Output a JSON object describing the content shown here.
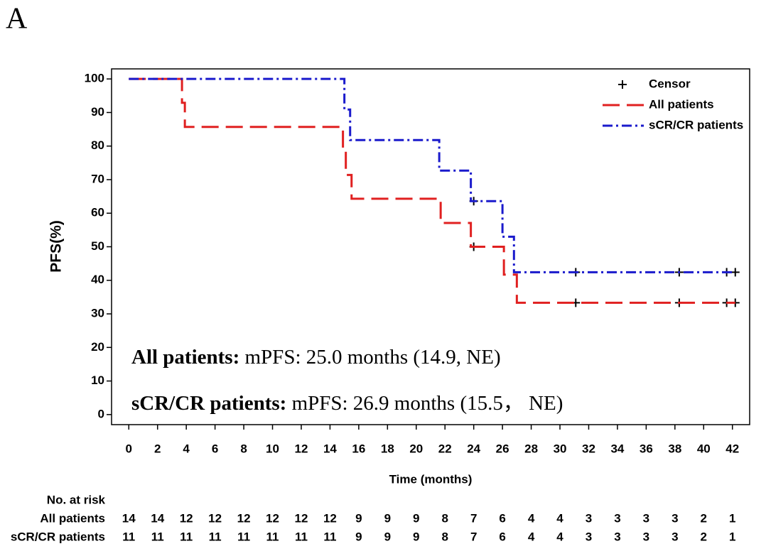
{
  "panel_label": "A",
  "chart_data": {
    "type": "km",
    "xlabel": "Time (months)",
    "ylabel": "PFS(%)",
    "xlim": [
      -1.2,
      43.2
    ],
    "ylim": [
      -3,
      103
    ],
    "xticks": [
      0,
      2,
      4,
      6,
      8,
      10,
      12,
      14,
      16,
      18,
      20,
      22,
      24,
      26,
      28,
      30,
      32,
      34,
      36,
      38,
      40,
      42
    ],
    "yticks": [
      0,
      10,
      20,
      30,
      40,
      50,
      60,
      70,
      80,
      90,
      100
    ],
    "legend": "upper right",
    "series": [
      {
        "name": "Censor",
        "color": "#000000",
        "kind": "censor",
        "x": [
          24.0,
          31.1,
          38.3,
          41.6,
          42.2,
          24.0,
          31.1,
          38.3,
          41.6,
          42.2
        ],
        "values": [
          50.0,
          33.3,
          33.3,
          33.3,
          33.3,
          63.6,
          42.4,
          42.4,
          42.4,
          42.4
        ]
      },
      {
        "name": "All patients",
        "color": "#e02020",
        "kind": "step",
        "dash": "24 10",
        "x": [
          0,
          3.7,
          3.9,
          14.9,
          15.1,
          15.5,
          21.7,
          23.8,
          26.1,
          27.0,
          42.2
        ],
        "values": [
          100,
          92.9,
          85.7,
          78.6,
          71.4,
          64.3,
          57.1,
          50.0,
          41.7,
          33.3,
          33.3
        ],
        "at_risk": [
          14,
          14,
          12,
          12,
          12,
          12,
          12,
          12,
          9,
          9,
          9,
          8,
          7,
          6,
          4,
          4,
          3,
          3,
          3,
          3,
          2,
          1
        ]
      },
      {
        "name": "sCR/CR patients",
        "color": "#1a1acc",
        "kind": "step",
        "dash": "14 5 3 5",
        "x": [
          0,
          15.0,
          15.4,
          21.6,
          23.8,
          26.0,
          26.8,
          42.2
        ],
        "values": [
          100,
          90.9,
          81.8,
          72.7,
          63.6,
          53.0,
          42.4,
          42.4
        ],
        "at_risk": [
          11,
          11,
          11,
          11,
          11,
          11,
          11,
          11,
          9,
          9,
          9,
          8,
          7,
          6,
          4,
          4,
          3,
          3,
          3,
          3,
          2,
          1
        ]
      }
    ],
    "annotations": [
      {
        "label": "All patients:",
        "text": " mPFS: 25.0 months (14.9, NE)"
      },
      {
        "label": "sCR/CR patients:",
        "text": " mPFS: 26.9 months (15.5， NE)"
      }
    ],
    "risk_title": "No. at risk"
  }
}
